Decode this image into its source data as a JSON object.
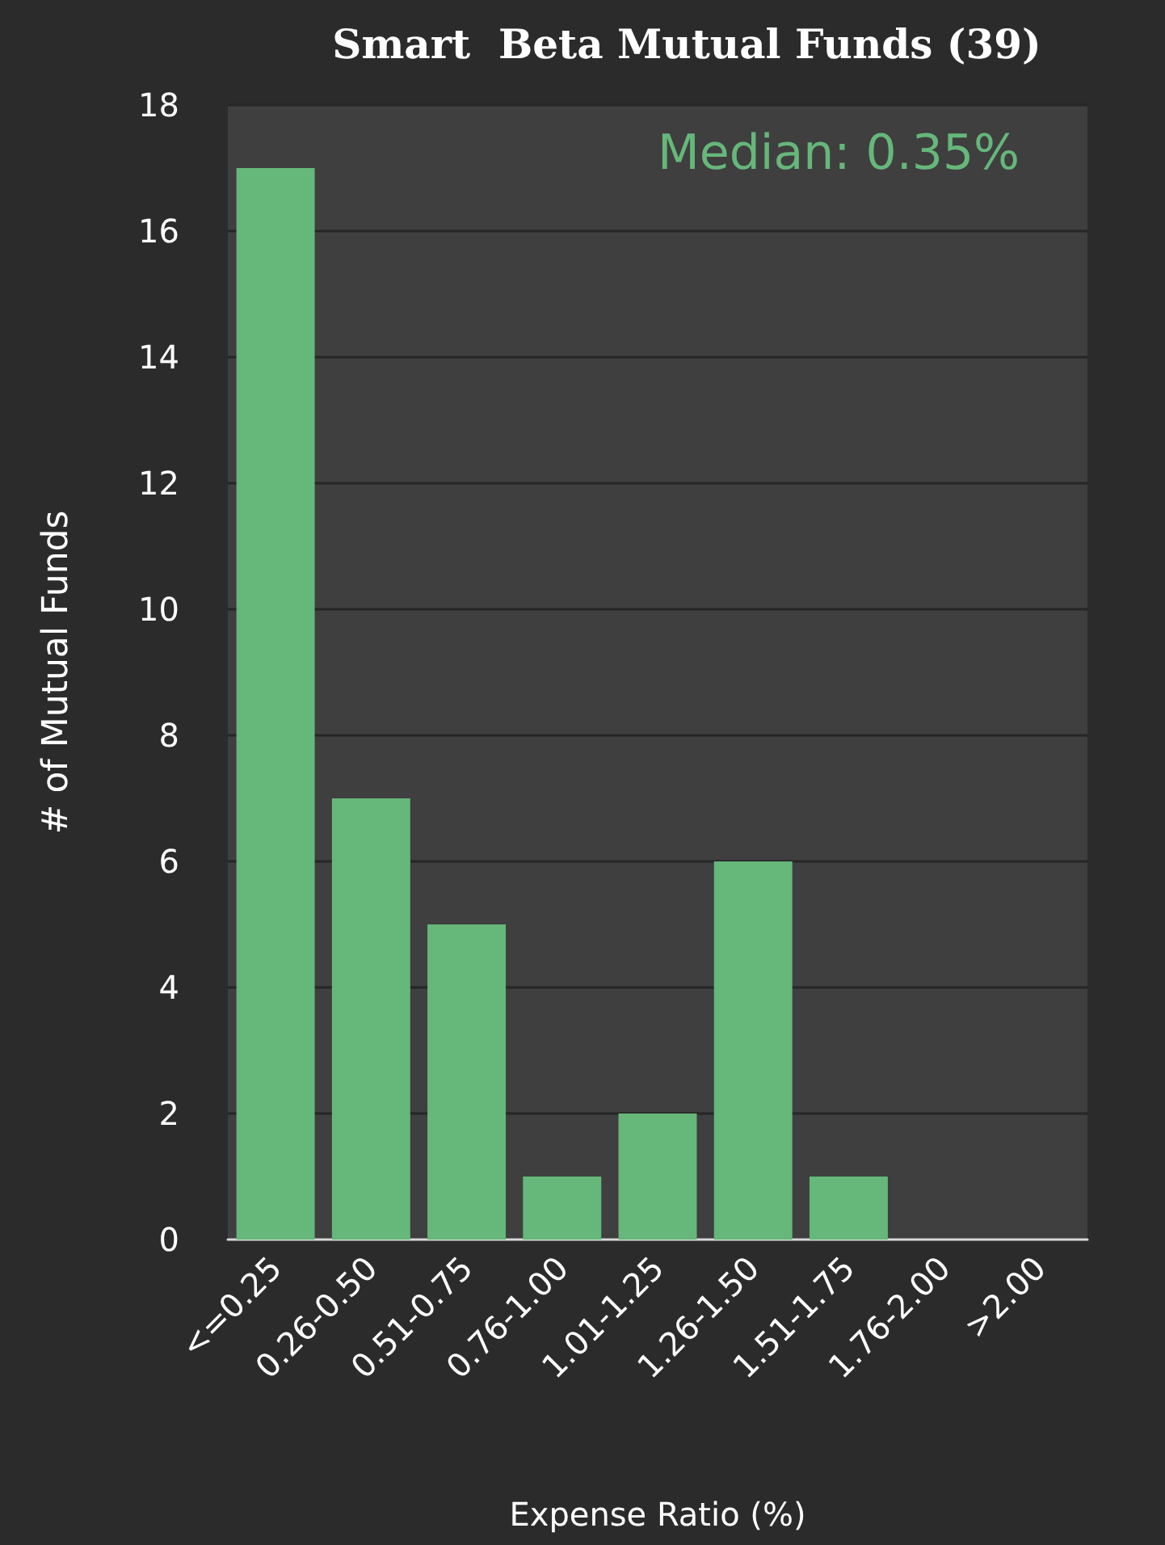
{
  "chart_data": {
    "type": "bar",
    "title": "Smart  Beta Mutual Funds (39)",
    "xlabel": "Expense Ratio (%)",
    "ylabel": "# of Mutual Funds",
    "annotations": [
      "Median: 0.35%"
    ],
    "categories": [
      "<=0.25",
      "0.26-0.50",
      "0.51-0.75",
      "0.76-1.00",
      "1.01-1.25",
      "1.26-1.50",
      "1.51-1.75",
      "1.76-2.00",
      ">2.00"
    ],
    "values": [
      17,
      7,
      5,
      1,
      2,
      6,
      1,
      0,
      0
    ],
    "color": "#66b77a",
    "ylim": [
      0,
      18
    ],
    "yticks": [
      0,
      2,
      4,
      6,
      8,
      10,
      12,
      14,
      16,
      18
    ],
    "grid": "y"
  }
}
